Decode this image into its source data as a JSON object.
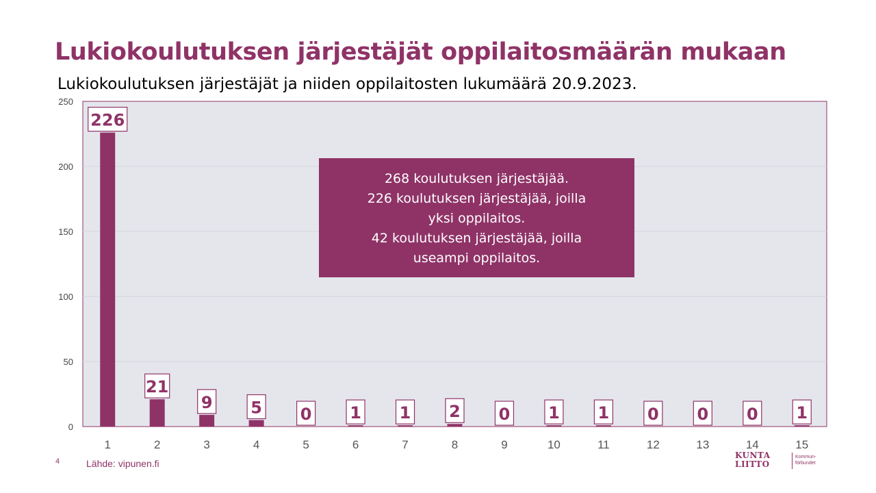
{
  "slide": {
    "title": "Lukiokoulutuksen järjestäjät oppilaitosmäärän mukaan",
    "subtitle": "Lukiokoulutuksen järjestäjät ja niiden oppilaitosten lukumäärä 20.9.2023.",
    "page_number": "4",
    "source": "Lähde: vipunen.fi",
    "logo": {
      "line1": "KUNTA",
      "line2": "LIITTO",
      "sub1": "Kommun-",
      "sub2": "förbundet"
    },
    "callout": [
      "268 koulutuksen järjestäjää.",
      "226 koulutuksen järjestäjää, joilla",
      "yksi oppilaitos.",
      "42 koulutuksen järjestäjää, joilla",
      "useampi oppilaitos."
    ]
  },
  "colors": {
    "accent": "#8f3367",
    "plot_bg": "#e4e6ec",
    "grid": "#d2d5dc"
  },
  "chart_data": {
    "type": "bar",
    "categories": [
      "1",
      "2",
      "3",
      "4",
      "5",
      "6",
      "7",
      "8",
      "9",
      "10",
      "11",
      "12",
      "13",
      "14",
      "15"
    ],
    "values": [
      226,
      21,
      9,
      5,
      0,
      1,
      1,
      2,
      0,
      1,
      1,
      0,
      0,
      0,
      1
    ],
    "title": "",
    "xlabel": "",
    "ylabel": "",
    "ylim": [
      0,
      250
    ],
    "yticks": [
      0,
      50,
      100,
      150,
      200,
      250
    ],
    "grid": true,
    "legend": "none",
    "data_labels": true
  }
}
